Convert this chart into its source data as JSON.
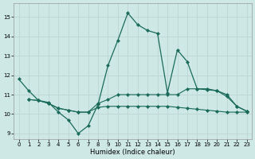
{
  "xlabel": "Humidex (Indice chaleur)",
  "xlim": [
    -0.5,
    23.5
  ],
  "ylim": [
    8.7,
    15.7
  ],
  "yticks": [
    9,
    10,
    11,
    12,
    13,
    14,
    15
  ],
  "xticks": [
    0,
    1,
    2,
    3,
    4,
    5,
    6,
    7,
    8,
    9,
    10,
    11,
    12,
    13,
    14,
    15,
    16,
    17,
    18,
    19,
    20,
    21,
    22,
    23
  ],
  "bg_color": "#cde8e5",
  "grid_color": "#c0d8d5",
  "line_color": "#1a6b5a",
  "line1_x": [
    0,
    1,
    2,
    3,
    4,
    5,
    6,
    7,
    8,
    9,
    10,
    11,
    12,
    13,
    14,
    15,
    16,
    17,
    18,
    19,
    20,
    21,
    22,
    23
  ],
  "line1_y": [
    11.8,
    11.2,
    10.7,
    10.6,
    10.1,
    9.7,
    9.0,
    9.4,
    10.5,
    12.5,
    13.8,
    15.2,
    14.6,
    14.3,
    14.15,
    11.1,
    13.3,
    12.7,
    11.3,
    11.3,
    11.2,
    11.0,
    10.4,
    10.15
  ],
  "line2_x": [
    1,
    2,
    3,
    4,
    5,
    6,
    7,
    8,
    9,
    10,
    11,
    12,
    13,
    14,
    15,
    16,
    17,
    18,
    19,
    20,
    21,
    22,
    23
  ],
  "line2_y": [
    10.75,
    10.7,
    10.55,
    10.3,
    10.2,
    10.1,
    10.1,
    10.55,
    10.75,
    11.0,
    11.0,
    11.0,
    11.0,
    11.0,
    11.0,
    11.0,
    11.3,
    11.3,
    11.25,
    11.2,
    10.9,
    10.4,
    10.15
  ],
  "line3_x": [
    1,
    2,
    3,
    4,
    5,
    6,
    7,
    8,
    9,
    10,
    11,
    12,
    13,
    14,
    15,
    16,
    17,
    18,
    19,
    20,
    21,
    22,
    23
  ],
  "line3_y": [
    10.75,
    10.7,
    10.55,
    10.3,
    10.2,
    10.1,
    10.1,
    10.35,
    10.4,
    10.4,
    10.4,
    10.4,
    10.4,
    10.4,
    10.4,
    10.35,
    10.3,
    10.25,
    10.2,
    10.15,
    10.1,
    10.1,
    10.1
  ]
}
